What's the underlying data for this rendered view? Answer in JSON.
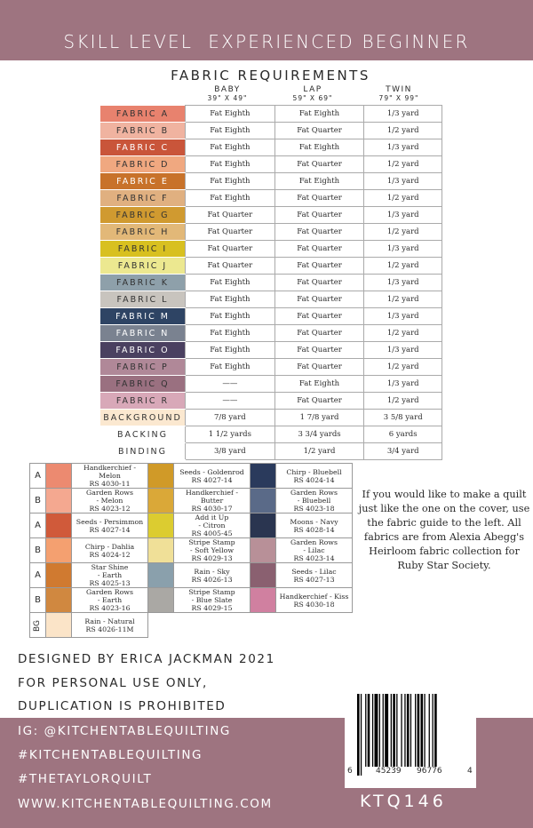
{
  "header": {
    "title": "SKILL LEVEL  EXPERIENCED BEGINNER"
  },
  "requirements": {
    "title": "FABRIC REQUIREMENTS",
    "columns": [
      {
        "name": "BABY",
        "size": "39\" X 49\""
      },
      {
        "name": "LAP",
        "size": "59\" X 69\""
      },
      {
        "name": "TWIN",
        "size": "79\" X 99\""
      }
    ],
    "rows": [
      {
        "label": "FABRIC A",
        "color": "#e8826e",
        "text": "#333",
        "baby": "Fat Eighth",
        "lap": "Fat Eighth",
        "twin": "1/3 yard"
      },
      {
        "label": "FABRIC B",
        "color": "#f0b3a0",
        "text": "#333",
        "baby": "Fat Eighth",
        "lap": "Fat Quarter",
        "twin": "1/2 yard"
      },
      {
        "label": "FABRIC C",
        "color": "#c9553a",
        "text": "#fff",
        "baby": "Fat Eighth",
        "lap": "Fat Eighth",
        "twin": "1/3 yard"
      },
      {
        "label": "FABRIC D",
        "color": "#f0a880",
        "text": "#333",
        "baby": "Fat Eighth",
        "lap": "Fat Quarter",
        "twin": "1/2 yard"
      },
      {
        "label": "FABRIC E",
        "color": "#c8722a",
        "text": "#fff",
        "baby": "Fat Eighth",
        "lap": "Fat Eighth",
        "twin": "1/3 yard"
      },
      {
        "label": "FABRIC F",
        "color": "#e0b080",
        "text": "#333",
        "baby": "Fat Eighth",
        "lap": "Fat Quarter",
        "twin": "1/2 yard"
      },
      {
        "label": "FABRIC G",
        "color": "#d09a30",
        "text": "#333",
        "baby": "Fat Quarter",
        "lap": "Fat Quarter",
        "twin": "1/3 yard"
      },
      {
        "label": "FABRIC H",
        "color": "#e2b878",
        "text": "#333",
        "baby": "Fat Quarter",
        "lap": "Fat Quarter",
        "twin": "1/2 yard"
      },
      {
        "label": "FABRIC I",
        "color": "#d8c020",
        "text": "#333",
        "baby": "Fat Quarter",
        "lap": "Fat Quarter",
        "twin": "1/3 yard"
      },
      {
        "label": "FABRIC J",
        "color": "#ece890",
        "text": "#333",
        "baby": "Fat Quarter",
        "lap": "Fat Quarter",
        "twin": "1/2 yard"
      },
      {
        "label": "FABRIC K",
        "color": "#8ea0aa",
        "text": "#333",
        "baby": "Fat Eighth",
        "lap": "Fat Quarter",
        "twin": "1/3 yard"
      },
      {
        "label": "FABRIC L",
        "color": "#c8c4be",
        "text": "#333",
        "baby": "Fat Eighth",
        "lap": "Fat Quarter",
        "twin": "1/2 yard"
      },
      {
        "label": "FABRIC M",
        "color": "#2e4464",
        "text": "#fff",
        "baby": "Fat Eighth",
        "lap": "Fat Quarter",
        "twin": "1/3 yard"
      },
      {
        "label": "FABRIC N",
        "color": "#7a8290",
        "text": "#fff",
        "baby": "Fat Eighth",
        "lap": "Fat Quarter",
        "twin": "1/2 yard"
      },
      {
        "label": "FABRIC O",
        "color": "#4a4060",
        "text": "#fff",
        "baby": "Fat Eighth",
        "lap": "Fat Quarter",
        "twin": "1/3 yard"
      },
      {
        "label": "FABRIC P",
        "color": "#b08898",
        "text": "#333",
        "baby": "Fat Eighth",
        "lap": "Fat Quarter",
        "twin": "1/2 yard"
      },
      {
        "label": "FABRIC Q",
        "color": "#9a7080",
        "text": "#333",
        "baby": "——",
        "lap": "Fat Eighth",
        "twin": "1/3 yard"
      },
      {
        "label": "FABRIC R",
        "color": "#d8a8b8",
        "text": "#333",
        "baby": "——",
        "lap": "Fat Quarter",
        "twin": "1/2 yard"
      },
      {
        "label": "BACKGROUND",
        "color": "#fbe8d0",
        "text": "#333",
        "baby": "7/8 yard",
        "lap": "1 7/8 yard",
        "twin": "3 5/8 yard"
      },
      {
        "label": "BACKING",
        "color": "#ffffff",
        "text": "#333",
        "baby": "1 1/2 yards",
        "lap": "3 3/4 yards",
        "twin": "6 yards"
      },
      {
        "label": "BINDING",
        "color": "#ffffff",
        "text": "#333",
        "baby": "3/8 yard",
        "lap": "1/2 yard",
        "twin": "3/4 yard"
      }
    ]
  },
  "guide": {
    "rows": [
      {
        "letter": "A",
        "cells": [
          {
            "c": "#ec8a70",
            "l": [
              "Handkerchief - Melon",
              "RS 4030-11"
            ]
          },
          {
            "c": "#d09a28",
            "l": [
              "Seeds - Goldenrod",
              "RS 4027-14"
            ]
          },
          {
            "c": "#2a3a5c",
            "l": [
              "Chirp - Bluebell",
              "RS 4024-14"
            ]
          }
        ]
      },
      {
        "letter": "B",
        "cells": [
          {
            "c": "#f4a890",
            "l": [
              "Garden Rows",
              "- Melon",
              "RS 4023-12"
            ]
          },
          {
            "c": "#daa838",
            "l": [
              "Handkerchief - Butter",
              "RS 4030-17"
            ]
          },
          {
            "c": "#5a6a88",
            "l": [
              "Garden Rows",
              "- Bluebell",
              "RS 4023-18"
            ]
          }
        ]
      },
      {
        "letter": "A",
        "cells": [
          {
            "c": "#d05a3a",
            "l": [
              "Seeds - Persimmon",
              "RS 4027-14"
            ]
          },
          {
            "c": "#dccc30",
            "l": [
              "Add it Up",
              "- Citron",
              "RS 4005-45"
            ]
          },
          {
            "c": "#2a3550",
            "l": [
              "Moons - Navy",
              "RS 4028-14"
            ]
          }
        ]
      },
      {
        "letter": "B",
        "cells": [
          {
            "c": "#f4a070",
            "l": [
              "Chirp - Dahlia",
              "RS 4024-12"
            ]
          },
          {
            "c": "#f0e098",
            "l": [
              "Stripe Stamp",
              "- Soft Yellow",
              "RS 4029-13"
            ]
          },
          {
            "c": "#b89098",
            "l": [
              "Garden Rows",
              "- Lilac",
              "RS 4023-14"
            ]
          }
        ]
      },
      {
        "letter": "A",
        "cells": [
          {
            "c": "#d07a30",
            "l": [
              "Star Shine",
              "- Earth",
              "RS 4025-13"
            ]
          },
          {
            "c": "#8aa0ac",
            "l": [
              "Rain - Sky",
              "RS 4026-13"
            ]
          },
          {
            "c": "#8a6070",
            "l": [
              "Seeds - Lilac",
              "RS 4027-13"
            ]
          }
        ]
      },
      {
        "letter": "B",
        "cells": [
          {
            "c": "#d08840",
            "l": [
              "Garden Rows",
              "- Earth",
              "RS 4023-16"
            ]
          },
          {
            "c": "#aaa8a4",
            "l": [
              "Stripe Stamp",
              "- Blue Slate",
              "RS 4029-15"
            ]
          },
          {
            "c": "#d080a0",
            "l": [
              "Handkerchief - Kiss",
              "RS 4030-18"
            ]
          }
        ]
      },
      {
        "letter": "BG",
        "cells": [
          {
            "c": "#fbe4c8",
            "l": [
              "Rain - Natural",
              "RS 4026-11M"
            ]
          }
        ]
      }
    ]
  },
  "side_note": "If you would like to make a quilt just like the one on the cover, use the fabric guide to the left. All fabrics are from Alexia Abegg's Heirloom fabric collection for Ruby Star Society.",
  "credits": [
    "DESIGNED BY ERICA JACKMAN 2021",
    "FOR PERSONAL USE ONLY,",
    "DUPLICATION IS PROHIBITED"
  ],
  "footer": {
    "lines": [
      "IG: @KITCHENTABLEQUILTING",
      "#KITCHENTABLEQUILTING",
      "#THETAYLORQUILT",
      "WWW.KITCHENTABLEQUILTING.COM"
    ],
    "sku": "KTQ146"
  },
  "barcode": {
    "digits": [
      "6",
      "45239",
      "96776",
      "4"
    ]
  },
  "colors": {
    "brand": "#9e7480"
  }
}
